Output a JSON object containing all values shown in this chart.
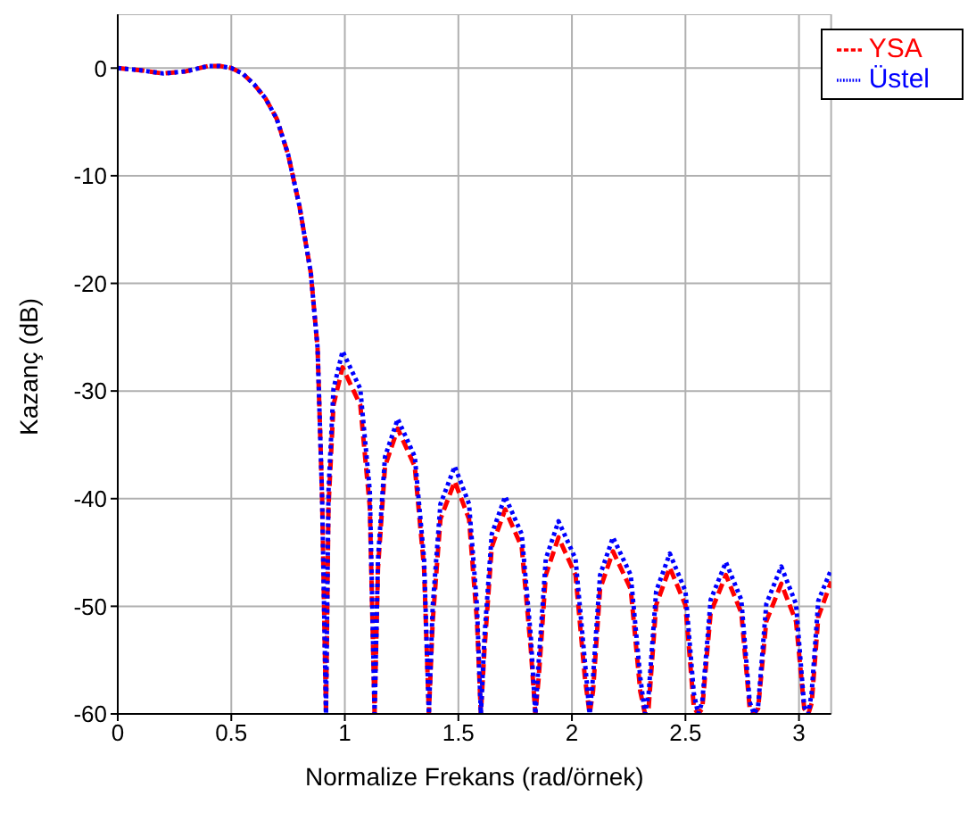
{
  "chart_data": {
    "type": "line",
    "xlabel": "Normalize Frekans (rad/örnek)",
    "ylabel": "Kazanç (dB)",
    "xlim": [
      0,
      3.1416
    ],
    "xticks": [
      0,
      0.5,
      1,
      1.5,
      2,
      2.5,
      3
    ],
    "ylim": [
      -60,
      5
    ],
    "yticks": [
      0,
      -10,
      -20,
      -30,
      -40,
      -50,
      -60
    ],
    "grid": true,
    "legend": "top right",
    "x": [
      0,
      0.1,
      0.2,
      0.3,
      0.4,
      0.45,
      0.5,
      0.55,
      0.6,
      0.65,
      0.7,
      0.75,
      0.8,
      0.85,
      0.88,
      0.9,
      0.917,
      0.928,
      0.95,
      0.99,
      1.068,
      1.11,
      1.131,
      1.146,
      1.177,
      1.233,
      1.308,
      1.349,
      1.37,
      1.387,
      1.421,
      1.484,
      1.547,
      1.582,
      1.599,
      1.615,
      1.647,
      1.706,
      1.779,
      1.819,
      1.839,
      1.854,
      1.885,
      1.941,
      2.016,
      2.057,
      2.078,
      2.093,
      2.124,
      2.181,
      2.259,
      2.301,
      2.322,
      2.338,
      2.371,
      2.431,
      2.5,
      2.537,
      2.556,
      2.574,
      2.611,
      2.678,
      2.746,
      2.783,
      2.802,
      2.82,
      2.856,
      2.922,
      2.987,
      3.023,
      3.041,
      3.056,
      3.085,
      3.1416
    ],
    "series": [
      {
        "name": "YSA",
        "color": "#ff0000",
        "line_style": "dashed",
        "values": [
          0,
          -0.2,
          -0.5,
          -0.3,
          0.2,
          0.2,
          0,
          -0.5,
          -1.5,
          -2.8,
          -4.7,
          -8,
          -12.8,
          -19,
          -26,
          -40,
          -60,
          -40.8,
          -31.3,
          -27.8,
          -31.3,
          -40.8,
          -60,
          -46.5,
          -37,
          -33.5,
          -37,
          -46.5,
          -60,
          -51.4,
          -41.9,
          -38.4,
          -41.9,
          -51.4,
          -60,
          -54,
          -44.5,
          -41,
          -44.5,
          -54,
          -60,
          -56.6,
          -47.1,
          -43.6,
          -47.1,
          -56.6,
          -60,
          -57.9,
          -48.4,
          -44.9,
          -48.4,
          -57.9,
          -60,
          -59.4,
          -49.9,
          -46.4,
          -49.9,
          -59.4,
          -60,
          -59.5,
          -50.6,
          -47.1,
          -50.6,
          -59.5,
          -60,
          -59.5,
          -51.4,
          -47.9,
          -51.4,
          -59.5,
          -60,
          -59,
          -51,
          -47.7
        ]
      },
      {
        "name": "Üstel",
        "color": "#0000ff",
        "line_style": "dotted",
        "values": [
          0,
          -0.2,
          -0.5,
          -0.3,
          0.2,
          0.2,
          0,
          -0.5,
          -1.5,
          -2.8,
          -4.7,
          -8,
          -12.8,
          -19,
          -26,
          -40,
          -60,
          -39.3,
          -29.8,
          -26.3,
          -29.8,
          -39.3,
          -60,
          -45.6,
          -36.1,
          -32.6,
          -36.1,
          -45.6,
          -60,
          -50,
          -40.5,
          -37,
          -40.5,
          -50,
          -60,
          -52.8,
          -43.3,
          -39.8,
          -43.3,
          -52.8,
          -60,
          -55.1,
          -45.6,
          -42.1,
          -45.6,
          -55.1,
          -60,
          -56.6,
          -47.1,
          -43.6,
          -47.1,
          -56.6,
          -60,
          -58.1,
          -48.6,
          -45.1,
          -48.6,
          -58.1,
          -60,
          -58.9,
          -49.4,
          -45.9,
          -49.4,
          -58.9,
          -60,
          -59.3,
          -49.8,
          -46.3,
          -49.8,
          -59.3,
          -60,
          -58,
          -49.5,
          -46.6
        ]
      }
    ]
  }
}
